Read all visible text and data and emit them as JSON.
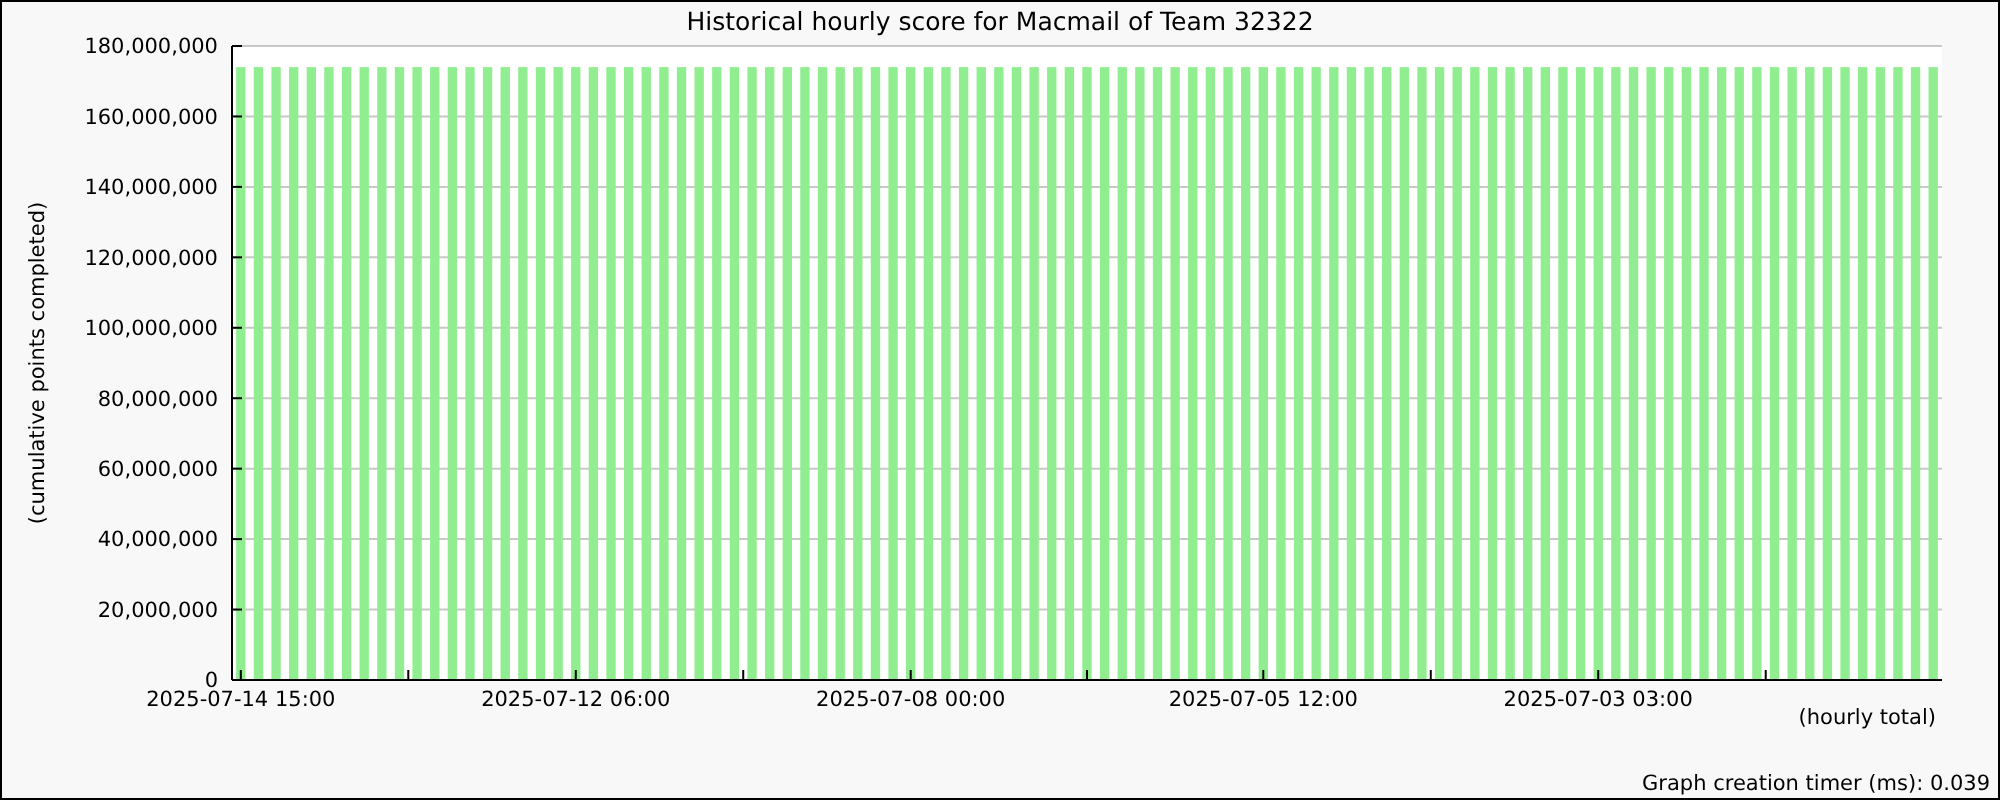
{
  "chart_data": {
    "type": "bar",
    "title": "Historical hourly score for Macmail of Team 32322",
    "ylabel": "(cumulative points completed)",
    "xlabel": "(hourly total)",
    "annotations": [
      "Graph creation timer (ms): 0.039"
    ],
    "categories": [
      "2025-07-14 15:00",
      null,
      null,
      null,
      null,
      null,
      null,
      null,
      null,
      null,
      null,
      null,
      null,
      null,
      null,
      null,
      null,
      null,
      null,
      "2025-07-12 06:00",
      null,
      null,
      null,
      null,
      null,
      null,
      null,
      null,
      null,
      null,
      null,
      null,
      null,
      null,
      null,
      null,
      null,
      null,
      "2025-07-08 00:00",
      null,
      null,
      null,
      null,
      null,
      null,
      null,
      null,
      null,
      null,
      null,
      null,
      null,
      null,
      null,
      null,
      null,
      null,
      null,
      "2025-07-05 12:00",
      null,
      null,
      null,
      null,
      null,
      null,
      null,
      null,
      null,
      null,
      null,
      null,
      null,
      null,
      null,
      null,
      null,
      null,
      "2025-07-03 03:00",
      null,
      null,
      null,
      null,
      null,
      null,
      null,
      null,
      null,
      null,
      null,
      null,
      null,
      null,
      null,
      null,
      null,
      null,
      null
    ],
    "values": [
      174000000,
      174000000,
      174000000,
      174000000,
      174000000,
      174000000,
      174000000,
      174000000,
      174000000,
      174000000,
      174000000,
      174000000,
      174000000,
      174000000,
      174000000,
      174000000,
      174000000,
      174000000,
      174000000,
      174000000,
      174000000,
      174000000,
      174000000,
      174000000,
      174000000,
      174000000,
      174000000,
      174000000,
      174000000,
      174000000,
      174000000,
      174000000,
      174000000,
      174000000,
      174000000,
      174000000,
      174000000,
      174000000,
      174000000,
      174000000,
      174000000,
      174000000,
      174000000,
      174000000,
      174000000,
      174000000,
      174000000,
      174000000,
      174000000,
      174000000,
      174000000,
      174000000,
      174000000,
      174000000,
      174000000,
      174000000,
      174000000,
      174000000,
      174000000,
      174000000,
      174000000,
      174000000,
      174000000,
      174000000,
      174000000,
      174000000,
      174000000,
      174000000,
      174000000,
      174000000,
      174000000,
      174000000,
      174000000,
      174000000,
      174000000,
      174000000,
      174000000,
      174000000,
      174000000,
      174000000,
      174000000,
      174000000,
      174000000,
      174000000,
      174000000,
      174000000,
      174000000,
      174000000,
      174000000,
      174000000,
      174000000,
      174000000,
      174000000,
      174000000,
      174000000,
      174000000,
      174000000
    ],
    "color": "#90ee90",
    "ylim": [
      0,
      180000000
    ],
    "yticks": [
      0,
      {
        "value": 20000000,
        "label": "20,000,000"
      },
      {
        "value": 40000000,
        "label": "40,000,000"
      },
      {
        "value": 60000000,
        "label": "60,000,000"
      },
      {
        "value": 80000000,
        "label": "80,000,000"
      },
      {
        "value": 100000000,
        "label": "100,000,000"
      },
      {
        "value": 120000000,
        "label": "120,000,000"
      },
      {
        "value": 140000000,
        "label": "140,000,000"
      },
      {
        "value": 160000000,
        "label": "160,000,000"
      },
      {
        "value": 180000000,
        "label": "180,000,000"
      }
    ],
    "grid": "y"
  }
}
